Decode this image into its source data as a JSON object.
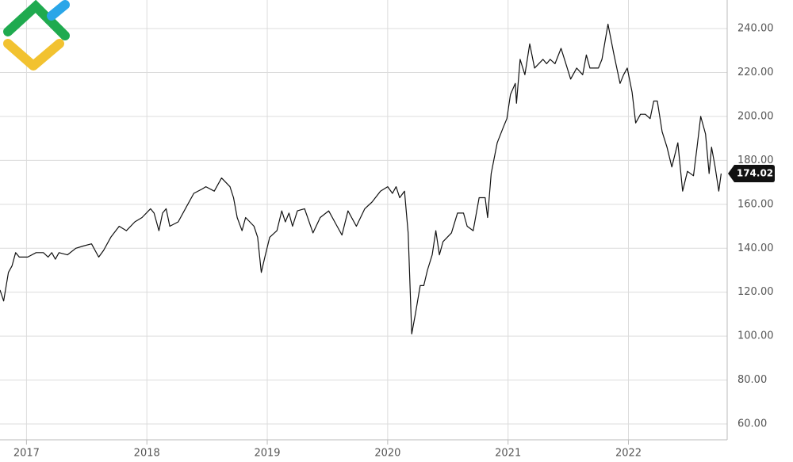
{
  "chart_data": {
    "type": "line",
    "color": "#111111",
    "grid": true,
    "x": [
      2016.78,
      2016.81,
      2016.85,
      2016.88,
      2016.91,
      2016.94,
      2017.01,
      2017.08,
      2017.14,
      2017.18,
      2017.21,
      2017.24,
      2017.27,
      2017.34,
      2017.41,
      2017.47,
      2017.54,
      2017.6,
      2017.64,
      2017.7,
      2017.77,
      2017.83,
      2017.9,
      2017.96,
      2018.03,
      2018.06,
      2018.1,
      2018.13,
      2018.16,
      2018.19,
      2018.26,
      2018.33,
      2018.39,
      2018.46,
      2018.49,
      2018.56,
      2018.62,
      2018.69,
      2018.72,
      2018.75,
      2018.79,
      2018.82,
      2018.89,
      2018.92,
      2018.95,
      2018.98,
      2019.02,
      2019.08,
      2019.12,
      2019.15,
      2019.18,
      2019.21,
      2019.25,
      2019.31,
      2019.38,
      2019.44,
      2019.51,
      2019.58,
      2019.62,
      2019.67,
      2019.74,
      2019.81,
      2019.87,
      2019.94,
      2020.0,
      2020.04,
      2020.07,
      2020.1,
      2020.14,
      2020.17,
      2020.2,
      2020.23,
      2020.27,
      2020.3,
      2020.33,
      2020.37,
      2020.4,
      2020.43,
      2020.46,
      2020.53,
      2020.58,
      2020.63,
      2020.66,
      2020.71,
      2020.76,
      2020.81,
      2020.83,
      2020.86,
      2020.91,
      2020.96,
      2020.99,
      2021.02,
      2021.06,
      2021.07,
      2021.1,
      2021.14,
      2021.18,
      2021.22,
      2021.29,
      2021.32,
      2021.35,
      2021.39,
      2021.44,
      2021.48,
      2021.52,
      2021.57,
      2021.62,
      2021.65,
      2021.68,
      2021.75,
      2021.78,
      2021.83,
      2021.88,
      2021.93,
      2021.96,
      2021.99,
      2022.03,
      2022.06,
      2022.1,
      2022.14,
      2022.18,
      2022.21,
      2022.24,
      2022.28,
      2022.32,
      2022.36,
      2022.41,
      2022.45,
      2022.49,
      2022.54,
      2022.57,
      2022.6,
      2022.64,
      2022.67,
      2022.69,
      2022.72,
      2022.75,
      2022.77
    ],
    "values": [
      121,
      116,
      129,
      132,
      138,
      136,
      136,
      138,
      138,
      136,
      138,
      135,
      138,
      137,
      140,
      141,
      142,
      136,
      139,
      145,
      150,
      148,
      152,
      154,
      158,
      156,
      148,
      156,
      158,
      150,
      152,
      159,
      165,
      167,
      168,
      166,
      172,
      168,
      163,
      154,
      148,
      154,
      150,
      145,
      129,
      136,
      145,
      148,
      157,
      152,
      156,
      150,
      157,
      158,
      147,
      154,
      157,
      150,
      146,
      157,
      150,
      158,
      161,
      166,
      168,
      165,
      168,
      163,
      166,
      147,
      101,
      110,
      123,
      123,
      130,
      137,
      148,
      137,
      143,
      147,
      156,
      156,
      150,
      148,
      163,
      163,
      154,
      174,
      188,
      195,
      199,
      210,
      215,
      206,
      226,
      219,
      233,
      222,
      226,
      224,
      226,
      224,
      231,
      224,
      217,
      222,
      219,
      228,
      222,
      222,
      226,
      242,
      228,
      215,
      219,
      222,
      211,
      197,
      201,
      201,
      199,
      207,
      207,
      193,
      186,
      177,
      188,
      166,
      175,
      173,
      186,
      200,
      192,
      174,
      186,
      177,
      166,
      174.02
    ],
    "xlim": [
      2016.78,
      2022.82
    ],
    "xticks": [
      2017,
      2018,
      2019,
      2020,
      2021,
      2022
    ],
    "ylim": [
      52.8,
      253
    ],
    "yticks": [
      {
        "value": 60,
        "label": "60.00"
      },
      {
        "value": 80,
        "label": "80.00"
      },
      {
        "value": 100,
        "label": "100.00"
      },
      {
        "value": 120,
        "label": "120.00"
      },
      {
        "value": 140,
        "label": "140.00"
      },
      {
        "value": 160,
        "label": "160.00"
      },
      {
        "value": 180,
        "label": "180.00"
      },
      {
        "value": 200,
        "label": "200.00"
      },
      {
        "value": 220,
        "label": "220.00"
      },
      {
        "value": 240,
        "label": "240.00"
      }
    ]
  }
}
